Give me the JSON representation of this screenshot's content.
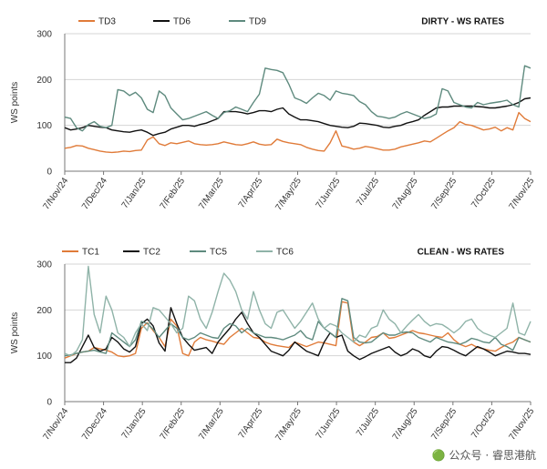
{
  "watermark": "🟢 公众号 · 睿思港航",
  "chart_data": [
    {
      "type": "line",
      "title": "DIRTY - WS RATES",
      "xlabel": "",
      "ylabel": "WS points",
      "ylim": [
        0,
        300
      ],
      "yticks": [
        0,
        100,
        200,
        300
      ],
      "x_tick_labels": [
        "7/Nov/24",
        "7/Dec/24",
        "7/Jan/25",
        "7/Feb/25",
        "7/Mar/25",
        "7/Apr/25",
        "7/May/25",
        "7/Jun/25",
        "7/Jul/25",
        "7/Aug/25",
        "7/Sep/25",
        "7/Oct/25",
        "7/Nov/25"
      ],
      "grid": true,
      "legend": "top-left",
      "series": [
        {
          "name": "TD3",
          "color": "#e07b39",
          "values": [
            50,
            52,
            56,
            55,
            50,
            47,
            44,
            42,
            41,
            42,
            44,
            43,
            45,
            46,
            68,
            75,
            60,
            56,
            62,
            60,
            63,
            66,
            60,
            58,
            57,
            58,
            60,
            64,
            61,
            58,
            57,
            60,
            64,
            59,
            57,
            58,
            70,
            65,
            62,
            60,
            58,
            52,
            48,
            45,
            44,
            62,
            88,
            55,
            52,
            48,
            50,
            54,
            52,
            49,
            46,
            46,
            48,
            53,
            56,
            59,
            62,
            66,
            64,
            72,
            80,
            88,
            95,
            108,
            102,
            100,
            95,
            90,
            92,
            96,
            88,
            95,
            90,
            128,
            115,
            108
          ]
        },
        {
          "name": "TD6",
          "color": "#111111",
          "values": [
            95,
            90,
            92,
            95,
            100,
            98,
            96,
            95,
            90,
            88,
            86,
            85,
            88,
            90,
            85,
            78,
            82,
            85,
            92,
            96,
            100,
            100,
            98,
            102,
            105,
            110,
            115,
            130,
            130,
            130,
            128,
            125,
            128,
            132,
            132,
            130,
            135,
            138,
            125,
            118,
            112,
            112,
            110,
            108,
            104,
            100,
            98,
            96,
            95,
            98,
            105,
            104,
            102,
            100,
            96,
            95,
            98,
            100,
            105,
            108,
            112,
            122,
            130,
            138,
            140,
            140,
            142,
            142,
            142,
            142,
            141,
            140,
            138,
            138,
            140,
            142,
            145,
            150,
            158,
            160
          ]
        },
        {
          "name": "TD9",
          "color": "#5e8a7e",
          "values": [
            118,
            115,
            95,
            88,
            102,
            108,
            98,
            95,
            100,
            178,
            175,
            165,
            172,
            160,
            135,
            128,
            175,
            165,
            138,
            125,
            112,
            115,
            120,
            125,
            130,
            122,
            115,
            128,
            132,
            140,
            135,
            130,
            150,
            168,
            225,
            222,
            220,
            215,
            190,
            160,
            155,
            148,
            160,
            170,
            165,
            155,
            175,
            170,
            168,
            165,
            152,
            145,
            130,
            120,
            118,
            115,
            118,
            125,
            130,
            125,
            120,
            115,
            118,
            125,
            180,
            175,
            150,
            145,
            140,
            138,
            150,
            145,
            148,
            150,
            152,
            155,
            145,
            140,
            230,
            225
          ]
        }
      ]
    },
    {
      "type": "line",
      "title": "CLEAN - WS RATES",
      "xlabel": "",
      "ylabel": "WS points",
      "ylim": [
        0,
        300
      ],
      "yticks": [
        0,
        100,
        200,
        300
      ],
      "x_tick_labels": [
        "7/Nov/24",
        "7/Dec/24",
        "7/Jan/25",
        "7/Feb/25",
        "7/Mar/25",
        "7/Apr/25",
        "7/May/25",
        "7/Jun/25",
        "7/Jul/25",
        "7/Aug/25",
        "7/Sep/25",
        "7/Oct/25",
        "7/Nov/25"
      ],
      "grid": true,
      "legend": "top-left",
      "series": [
        {
          "name": "TC1",
          "color": "#e07b39",
          "values": [
            95,
            100,
            105,
            108,
            110,
            118,
            115,
            112,
            108,
            100,
            98,
            100,
            105,
            160,
            172,
            155,
            140,
            120,
            180,
            165,
            105,
            100,
            130,
            140,
            135,
            132,
            128,
            125,
            140,
            150,
            160,
            150,
            140,
            138,
            130,
            125,
            122,
            120,
            118,
            130,
            125,
            120,
            125,
            130,
            128,
            125,
            122,
            218,
            215,
            130,
            122,
            130,
            140,
            142,
            150,
            138,
            140,
            145,
            150,
            155,
            150,
            148,
            145,
            142,
            140,
            150,
            135,
            125,
            120,
            125,
            118,
            115,
            112,
            110,
            118,
            125,
            130,
            140,
            135,
            130
          ]
        },
        {
          "name": "TC2",
          "color": "#111111",
          "values": [
            85,
            85,
            95,
            120,
            145,
            118,
            110,
            115,
            140,
            130,
            115,
            108,
            120,
            170,
            180,
            165,
            128,
            110,
            205,
            170,
            140,
            125,
            112,
            115,
            118,
            105,
            130,
            145,
            160,
            180,
            195,
            170,
            150,
            140,
            125,
            110,
            105,
            100,
            112,
            130,
            120,
            110,
            105,
            100,
            130,
            150,
            140,
            145,
            110,
            100,
            92,
            98,
            105,
            110,
            115,
            120,
            108,
            100,
            105,
            115,
            110,
            100,
            96,
            110,
            120,
            118,
            112,
            105,
            100,
            110,
            120,
            115,
            108,
            100,
            105,
            110,
            108,
            105,
            105,
            103
          ]
        },
        {
          "name": "TC5",
          "color": "#5e8a7e",
          "values": [
            100,
            102,
            105,
            108,
            110,
            112,
            108,
            105,
            150,
            140,
            130,
            120,
            135,
            175,
            170,
            158,
            140,
            155,
            170,
            160,
            140,
            135,
            140,
            150,
            145,
            140,
            138,
            160,
            170,
            165,
            150,
            160,
            150,
            145,
            140,
            140,
            138,
            135,
            140,
            145,
            155,
            140,
            135,
            175,
            160,
            150,
            140,
            225,
            220,
            140,
            130,
            128,
            130,
            140,
            150,
            145,
            145,
            150,
            152,
            150,
            140,
            135,
            130,
            140,
            135,
            130,
            128,
            125,
            130,
            138,
            135,
            130,
            128,
            140,
            125,
            120,
            112,
            140,
            135,
            130
          ]
        },
        {
          "name": "TC6",
          "color": "#8fb3a8",
          "values": [
            105,
            100,
            110,
            135,
            295,
            190,
            150,
            230,
            200,
            150,
            140,
            120,
            150,
            170,
            155,
            205,
            200,
            185,
            170,
            150,
            160,
            230,
            220,
            180,
            160,
            195,
            240,
            280,
            265,
            240,
            200,
            180,
            240,
            200,
            170,
            160,
            195,
            200,
            180,
            160,
            175,
            195,
            215,
            180,
            160,
            170,
            165,
            150,
            140,
            130,
            145,
            140,
            160,
            165,
            200,
            180,
            170,
            150,
            165,
            178,
            190,
            175,
            165,
            170,
            168,
            160,
            150,
            160,
            175,
            180,
            160,
            150,
            145,
            140,
            150,
            160,
            215,
            150,
            145,
            175
          ]
        }
      ]
    }
  ]
}
